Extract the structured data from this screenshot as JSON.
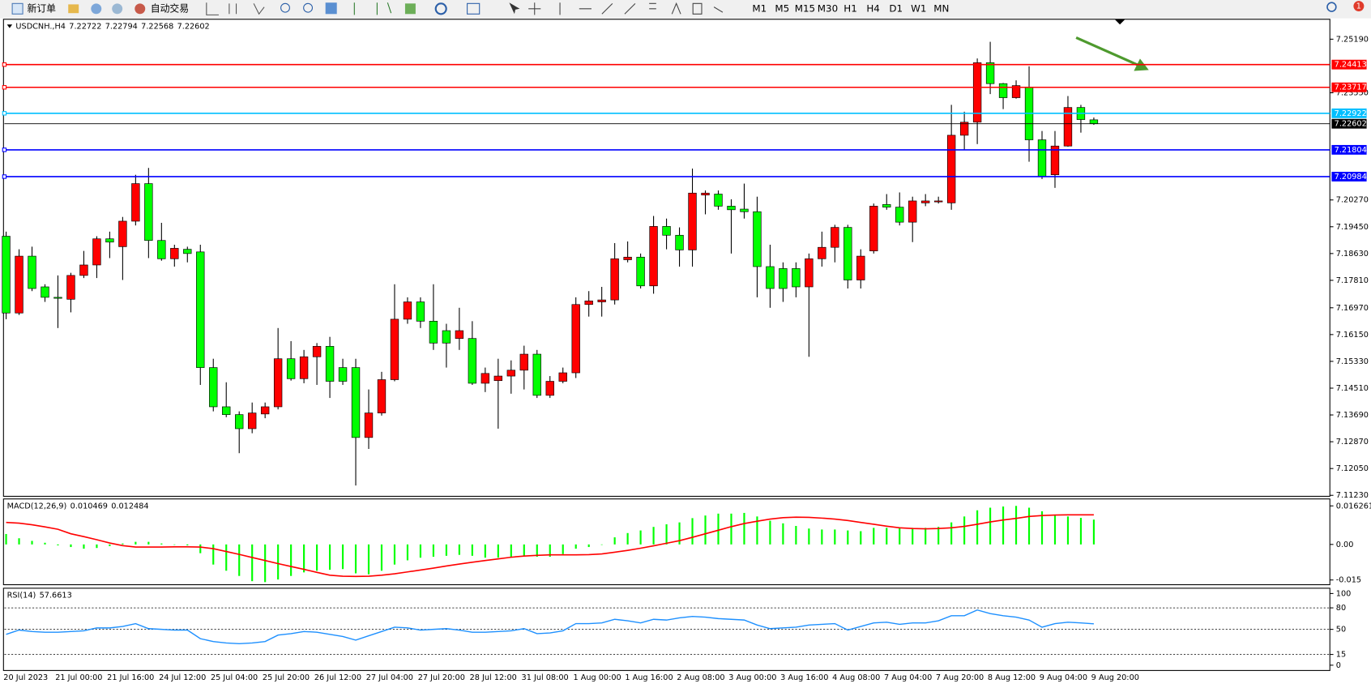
{
  "toolbar": {
    "buttons": [
      "新订单",
      "自动交易"
    ],
    "timeframes": [
      "M1",
      "M5",
      "M15",
      "M30",
      "H1",
      "H4",
      "D1",
      "W1",
      "MN"
    ],
    "badge": "1"
  },
  "chart_data": [
    {
      "type": "candlestick",
      "title": "USDCNH.,H4",
      "categories": [
        "20 Jul 2023",
        null,
        null,
        null,
        "21 Jul 00:00",
        null,
        null,
        null,
        "21 Jul 16:00",
        null,
        null,
        null,
        "24 Jul 12:00",
        null,
        null,
        null,
        "25 Jul 04:00",
        null,
        null,
        null,
        "25 Jul 20:00",
        null,
        null,
        null,
        "26 Jul 12:00",
        null,
        null,
        null,
        "27 Jul 04:00",
        null,
        null,
        null,
        "27 Jul 20:00",
        null,
        null,
        null,
        "28 Jul 12:00",
        null,
        null,
        null,
        "31 Jul 08:00",
        null,
        null,
        null,
        "1 Aug 00:00",
        null,
        null,
        null,
        "1 Aug 16:00",
        null,
        null,
        null,
        "2 Aug 08:00",
        null,
        null,
        null,
        "3 Aug 00:00",
        null,
        null,
        null,
        "3 Aug 16:00",
        null,
        null,
        null,
        "4 Aug 08:00",
        null,
        null,
        null,
        "7 Aug 04:00",
        null,
        null,
        null,
        "7 Aug 20:00",
        null,
        null,
        null,
        "8 Aug 12:00",
        null,
        null,
        null,
        "9 Aug 04:00",
        null,
        null,
        null,
        "9 Aug 20:00"
      ],
      "open": [
        7.1916,
        7.1681,
        7.1855,
        7.1761,
        7.1729,
        7.1723,
        7.1796,
        7.1828,
        7.1908,
        7.1884,
        7.1962,
        7.2077,
        7.1903,
        7.1847,
        7.1876,
        7.1868,
        7.1514,
        7.1394,
        7.137,
        7.1327,
        7.1372,
        7.1394,
        7.1541,
        7.148,
        7.1547,
        7.1579,
        7.1514,
        7.1514,
        7.13,
        7.1375,
        7.1477,
        7.1662,
        7.1715,
        7.1656,
        7.1627,
        7.1603,
        7.1603,
        7.1466,
        7.1474,
        7.1488,
        7.1506,
        7.1555,
        7.1429,
        7.1472,
        7.1498,
        7.1707,
        7.1715,
        7.1721,
        7.1844,
        7.1852,
        7.1764,
        7.1946,
        7.1919,
        7.1874,
        7.2042,
        7.2045,
        7.2008,
        7.1999,
        7.1991,
        7.1823,
        7.1817,
        7.1817,
        7.1761,
        7.1847,
        7.1882,
        7.1943,
        7.1782,
        7.1871,
        7.2013,
        7.2005,
        7.1959,
        7.2018,
        7.2021,
        7.2018,
        7.2225,
        7.2265,
        7.2447,
        7.2383,
        7.234,
        7.2372,
        7.2211,
        7.2104,
        7.2192,
        7.231,
        7.22722
      ],
      "high": [
        7.193,
        7.1876,
        7.1884,
        7.1769,
        7.1796,
        7.1804,
        7.1871,
        7.1916,
        7.193,
        7.1975,
        7.2104,
        7.2125,
        7.1957,
        7.189,
        7.1884,
        7.189,
        7.1541,
        7.1469,
        7.138,
        7.1407,
        7.1407,
        7.1635,
        7.1595,
        7.1568,
        7.1589,
        7.1608,
        7.1541,
        7.1541,
        7.1447,
        7.1501,
        7.1769,
        7.1729,
        7.1729,
        7.1769,
        7.1648,
        7.1697,
        7.1656,
        7.1514,
        7.1541,
        7.1536,
        7.1581,
        7.1568,
        7.1488,
        7.1514,
        7.1729,
        7.1748,
        7.1761,
        7.1895,
        7.19,
        7.1863,
        7.1978,
        7.197,
        7.1943,
        7.2123,
        7.2056,
        7.2056,
        7.2029,
        7.2077,
        7.2037,
        7.189,
        7.1836,
        7.1836,
        7.1863,
        7.193,
        7.1951,
        7.1951,
        7.1876,
        7.2016,
        7.2045,
        7.205,
        7.2037,
        7.2045,
        7.2037,
        7.2318,
        7.2297,
        7.246,
        7.2511,
        7.2385,
        7.2393,
        7.2436,
        7.2238,
        7.2238,
        7.2345,
        7.2318,
        7.22794
      ],
      "low": [
        7.1662,
        7.1675,
        7.1748,
        7.1715,
        7.1635,
        7.1683,
        7.1788,
        7.1788,
        7.1849,
        7.1782,
        7.1949,
        7.1849,
        7.1841,
        7.1823,
        7.1836,
        7.1461,
        7.138,
        7.1362,
        7.1252,
        7.1313,
        7.1359,
        7.1386,
        7.1474,
        7.1466,
        7.1461,
        7.1421,
        7.1461,
        7.1153,
        7.1265,
        7.1367,
        7.1472,
        7.1648,
        7.1635,
        7.1568,
        7.1514,
        7.1568,
        7.1461,
        7.1439,
        7.1327,
        7.1434,
        7.1447,
        7.1421,
        7.1421,
        7.1466,
        7.1482,
        7.167,
        7.167,
        7.1707,
        7.1836,
        7.1756,
        7.174,
        7.1876,
        7.1823,
        7.1823,
        7.1983,
        7.1997,
        7.1863,
        7.197,
        7.1729,
        7.1697,
        7.1715,
        7.1729,
        7.1547,
        7.1823,
        7.1836,
        7.1756,
        7.1756,
        7.1863,
        7.1997,
        7.1949,
        7.1898,
        7.2008,
        7.2016,
        7.1997,
        7.2179,
        7.2198,
        7.2351,
        7.2305,
        7.2337,
        7.2144,
        7.2091,
        7.2064,
        7.219,
        7.2233,
        7.22568
      ],
      "close": [
        7.1681,
        7.1855,
        7.1756,
        7.1729,
        7.1726,
        7.1796,
        7.1828,
        7.1908,
        7.1898,
        7.1962,
        7.2077,
        7.1903,
        7.1847,
        7.1879,
        7.1863,
        7.1514,
        7.1394,
        7.137,
        7.1327,
        7.1375,
        7.1394,
        7.1541,
        7.148,
        7.1547,
        7.1579,
        7.1472,
        7.1472,
        7.13,
        7.1375,
        7.1477,
        7.1662,
        7.1715,
        7.1656,
        7.1589,
        7.1589,
        7.1627,
        7.1466,
        7.1496,
        7.1488,
        7.1506,
        7.1555,
        7.1429,
        7.1472,
        7.1498,
        7.1707,
        7.1718,
        7.1721,
        7.1847,
        7.1852,
        7.1764,
        7.1946,
        7.1919,
        7.1874,
        7.2048,
        7.2048,
        7.2008,
        7.1997,
        7.1991,
        7.1823,
        7.1756,
        7.1756,
        7.1761,
        7.1847,
        7.1882,
        7.1943,
        7.1782,
        7.1855,
        7.2008,
        7.2005,
        7.1959,
        7.2024,
        7.2024,
        7.2024,
        7.2225,
        7.2265,
        7.2447,
        7.2383,
        7.234,
        7.2377,
        7.2211,
        7.2099,
        7.2192,
        7.231,
        7.2273,
        7.22602
      ],
      "up_color": "#ff0000",
      "down_color": "#00ff00",
      "ylim": [
        7.112,
        7.258
      ],
      "yticks": [
        {
          "value": 7.2519,
          "label": "7.25190"
        },
        {
          "value": 7.2355,
          "label": "7.23550"
        },
        {
          "value": 7.2027,
          "label": "7.20270"
        },
        {
          "value": 7.1945,
          "label": "7.19450"
        },
        {
          "value": 7.1863,
          "label": "7.18630"
        },
        {
          "value": 7.1781,
          "label": "7.17810"
        },
        {
          "value": 7.1697,
          "label": "7.16970"
        },
        {
          "value": 7.1615,
          "label": "7.16150"
        },
        {
          "value": 7.1533,
          "label": "7.15330"
        },
        {
          "value": 7.1451,
          "label": "7.14510"
        },
        {
          "value": 7.1369,
          "label": "7.13690"
        },
        {
          "value": 7.1287,
          "label": "7.12870"
        },
        {
          "value": 7.1205,
          "label": "7.12050"
        },
        {
          "value": 7.1123,
          "label": "7.11230"
        }
      ],
      "levels": [
        {
          "value": 7.24413,
          "color": "#ff0000"
        },
        {
          "value": 7.23717,
          "color": "#ff0000"
        },
        {
          "value": 7.22922,
          "color": "#00bfff"
        },
        {
          "value": 7.21804,
          "color": "#0000ff"
        },
        {
          "value": 7.20984,
          "color": "#0000ff"
        }
      ],
      "price_line_color": "#000000"
    },
    {
      "type": "macd",
      "title": "MACD(12,26,9)",
      "histogram": [
        0.0044,
        0.0026,
        0.0015,
        0.0007,
        -0.0004,
        -0.0011,
        -0.0018,
        -0.0015,
        -0.0007,
        0.0004,
        0.0011,
        0.0011,
        0.0004,
        0,
        -0.0004,
        -0.0037,
        -0.0085,
        -0.0111,
        -0.0133,
        -0.0155,
        -0.0159,
        -0.0148,
        -0.0133,
        -0.0118,
        -0.0111,
        -0.0107,
        -0.0104,
        -0.0122,
        -0.0126,
        -0.0111,
        -0.0085,
        -0.0067,
        -0.0056,
        -0.0052,
        -0.0048,
        -0.0044,
        -0.0048,
        -0.0056,
        -0.0056,
        -0.0052,
        -0.0048,
        -0.0052,
        -0.0052,
        -0.0041,
        -0.0018,
        -0.0011,
        0,
        0.003,
        0.0048,
        0.0059,
        0.0074,
        0.0085,
        0.0093,
        0.0111,
        0.0122,
        0.013,
        0.013,
        0.0133,
        0.0118,
        0.01,
        0.0089,
        0.0078,
        0.0067,
        0.0063,
        0.0063,
        0.0059,
        0.0056,
        0.007,
        0.007,
        0.007,
        0.007,
        0.007,
        0.0074,
        0.0093,
        0.0118,
        0.0144,
        0.0155,
        0.016,
        0.016261,
        0.0155,
        0.014,
        0.0125,
        0.0118,
        0.0112,
        0.010469
      ],
      "signal": [
        0.0093,
        0.009,
        0.0083,
        0.0074,
        0.0064,
        0.0045,
        0.0033,
        0.002,
        0.0006,
        -0.0005,
        -0.0011,
        -0.0011,
        -0.0011,
        -0.001,
        -0.001,
        -0.0011,
        -0.0018,
        -0.003,
        -0.0042,
        -0.0055,
        -0.0068,
        -0.0081,
        -0.0093,
        -0.0105,
        -0.0118,
        -0.013,
        -0.0134,
        -0.0135,
        -0.0134,
        -0.013,
        -0.0124,
        -0.0116,
        -0.0108,
        -0.01,
        -0.0091,
        -0.0083,
        -0.0075,
        -0.0068,
        -0.0061,
        -0.0054,
        -0.0049,
        -0.0046,
        -0.0044,
        -0.0044,
        -0.0044,
        -0.0043,
        -0.004,
        -0.0033,
        -0.0025,
        -0.0016,
        -0.0006,
        0.0005,
        0.0016,
        0.003,
        0.0045,
        0.006,
        0.0075,
        0.0088,
        0.0098,
        0.0107,
        0.0113,
        0.0115,
        0.0114,
        0.0111,
        0.0107,
        0.0101,
        0.0093,
        0.0085,
        0.0077,
        0.007,
        0.0067,
        0.0066,
        0.0067,
        0.007,
        0.0076,
        0.0085,
        0.0095,
        0.0103,
        0.011,
        0.0118,
        0.0122,
        0.0124,
        0.0125,
        0.0125,
        0.012484
      ],
      "histogram_color": "#00ff00",
      "signal_color": "#ff0000",
      "ylim": [
        -0.017,
        0.0192
      ],
      "yticks": [
        0.016261,
        {
          "value": 0,
          "label": "0.00"
        },
        -0.015
      ]
    },
    {
      "type": "line",
      "title": "RSI(14)",
      "values": [
        43,
        49,
        47,
        46,
        46,
        47,
        48,
        52,
        52,
        54,
        58,
        51,
        50,
        49,
        49,
        37,
        33,
        31,
        30,
        31,
        33,
        42,
        44,
        47,
        46,
        43,
        40,
        35,
        41,
        47,
        53,
        52,
        49,
        50,
        51,
        49,
        46,
        46,
        47,
        48,
        51,
        44,
        45,
        48,
        58,
        58,
        59,
        64,
        62,
        59,
        64,
        63,
        66,
        68,
        67,
        65,
        64,
        63,
        56,
        51,
        52,
        53,
        56,
        57,
        58,
        49,
        54,
        59,
        60,
        57,
        59,
        59,
        62,
        69,
        69,
        77,
        72,
        69,
        67,
        63,
        53,
        58,
        60,
        59,
        57.6613
      ],
      "color": "#1e90ff",
      "ylim": [
        -7.4,
        107.4
      ],
      "yticks": [
        100,
        80,
        50,
        15,
        0
      ],
      "levels": [
        80,
        50,
        15
      ]
    }
  ]
}
